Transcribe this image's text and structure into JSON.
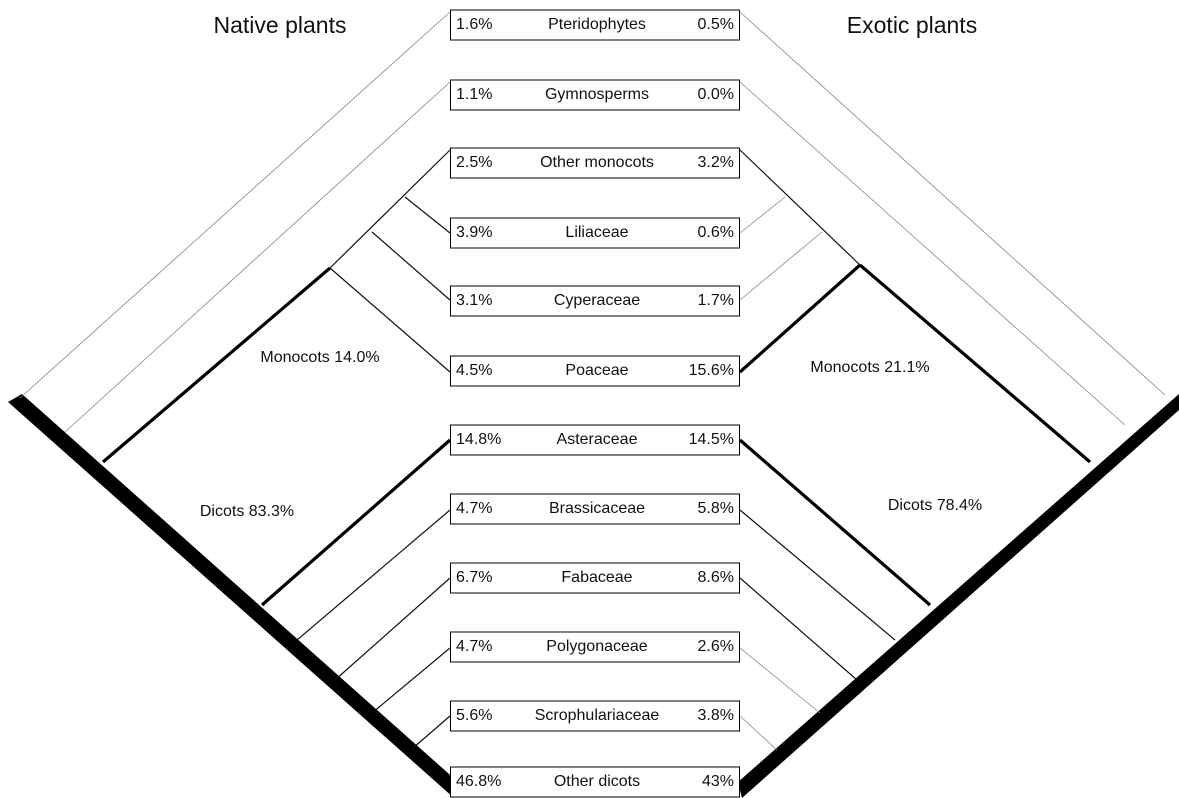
{
  "left_title": "Native plants",
  "right_title": "Exotic plants",
  "groups": {
    "native_monocots": "Monocots 14.0%",
    "native_dicots": "Dicots 83.3%",
    "exotic_monocots": "Monocots 21.1%",
    "exotic_dicots": "Dicots 78.4%"
  },
  "rows": [
    {
      "native": "1.6%",
      "name": "Pteridophytes",
      "exotic": "0.5%"
    },
    {
      "native": "1.1%",
      "name": "Gymnosperms",
      "exotic": "0.0%"
    },
    {
      "native": "2.5%",
      "name": "Other monocots",
      "exotic": "3.2%"
    },
    {
      "native": "3.9%",
      "name": "Liliaceae",
      "exotic": "0.6%"
    },
    {
      "native": "3.1%",
      "name": "Cyperaceae",
      "exotic": "1.7%"
    },
    {
      "native": "4.5%",
      "name": "Poaceae",
      "exotic": "15.6%"
    },
    {
      "native": "14.8%",
      "name": "Asteraceae",
      "exotic": "14.5%"
    },
    {
      "native": "4.7%",
      "name": "Brassicaceae",
      "exotic": "5.8%"
    },
    {
      "native": "6.7%",
      "name": "Fabaceae",
      "exotic": "8.6%"
    },
    {
      "native": "4.7%",
      "name": "Polygonaceae",
      "exotic": "2.6%"
    },
    {
      "native": "5.6%",
      "name": "Scrophulariaceae",
      "exotic": "3.8%"
    },
    {
      "native": "46.8%",
      "name": "Other dicots",
      "exotic": "43%"
    }
  ]
}
